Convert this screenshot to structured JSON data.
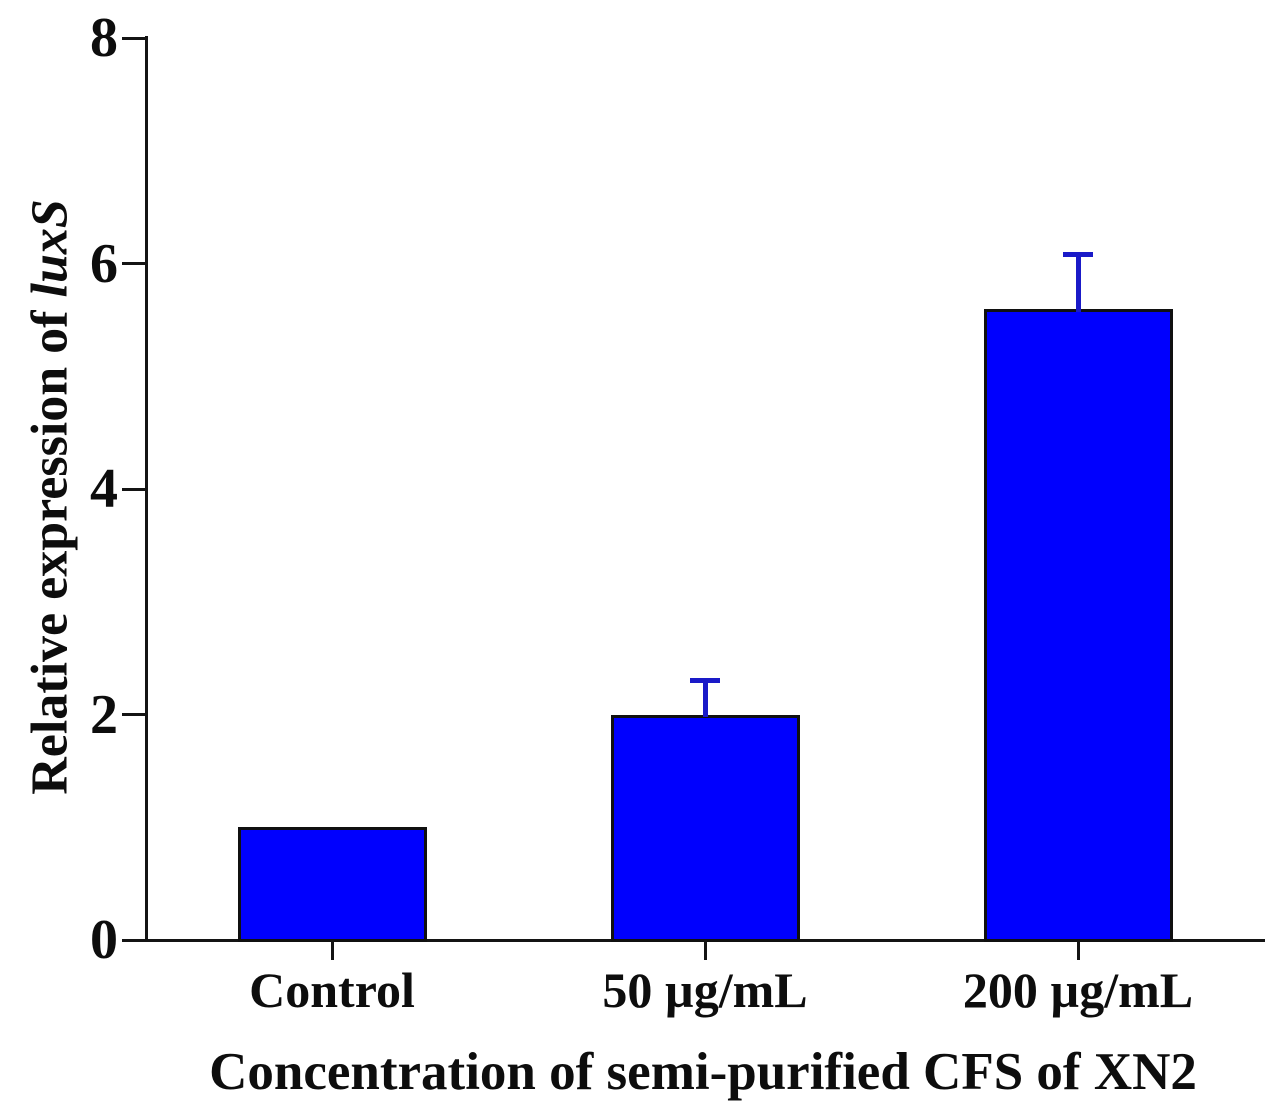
{
  "chart_data": {
    "type": "bar",
    "title": "",
    "xlabel": "Concentration of semi-purified CFS of XN2",
    "ylabel": {
      "prefix": "Relative expression of ",
      "italic": "luxS",
      "full": "Relative expression of luxS"
    },
    "categories": [
      "Control",
      "50 µg/mL",
      "200 µg/mL"
    ],
    "series": [
      {
        "name": "Relative expression of luxS",
        "values": [
          1.0,
          2.0,
          5.6
        ],
        "upper_errors": [
          0,
          0.3,
          0.48
        ]
      }
    ],
    "yticks": [
      0,
      2,
      4,
      6,
      8
    ],
    "ylim": [
      0,
      8
    ],
    "grid": false,
    "legend_position": "none",
    "colors": {
      "bar_fill": "#0000fe",
      "bar_border": "#101010",
      "error_bar": "#1a1ac8",
      "axis": "#141414",
      "text": "#0d0d0d"
    }
  }
}
